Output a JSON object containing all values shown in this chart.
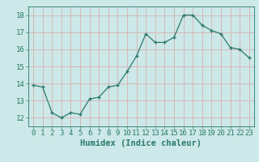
{
  "x": [
    0,
    1,
    2,
    3,
    4,
    5,
    6,
    7,
    8,
    9,
    10,
    11,
    12,
    13,
    14,
    15,
    16,
    17,
    18,
    19,
    20,
    21,
    22,
    23
  ],
  "y": [
    13.9,
    13.8,
    12.3,
    12.0,
    12.3,
    12.2,
    13.1,
    13.2,
    13.8,
    13.9,
    14.7,
    15.6,
    16.9,
    16.4,
    16.4,
    16.7,
    18.0,
    18.0,
    17.4,
    17.1,
    16.9,
    16.1,
    16.0,
    15.5
  ],
  "xlabel": "Humidex (Indice chaleur)",
  "bg_color": "#cce8e8",
  "line_color": "#2a7a6a",
  "marker_color": "#2a7a6a",
  "grid_color": "#d9b0b0",
  "tick_color": "#2a7a6a",
  "spine_color": "#2a7a6a",
  "ylim": [
    11.5,
    18.5
  ],
  "xlim": [
    -0.5,
    23.5
  ],
  "yticks": [
    12,
    13,
    14,
    15,
    16,
    17,
    18
  ],
  "xticks": [
    0,
    1,
    2,
    3,
    4,
    5,
    6,
    7,
    8,
    9,
    10,
    11,
    12,
    13,
    14,
    15,
    16,
    17,
    18,
    19,
    20,
    21,
    22,
    23
  ],
  "label_fontsize": 7.5,
  "tick_fontsize": 6.5
}
